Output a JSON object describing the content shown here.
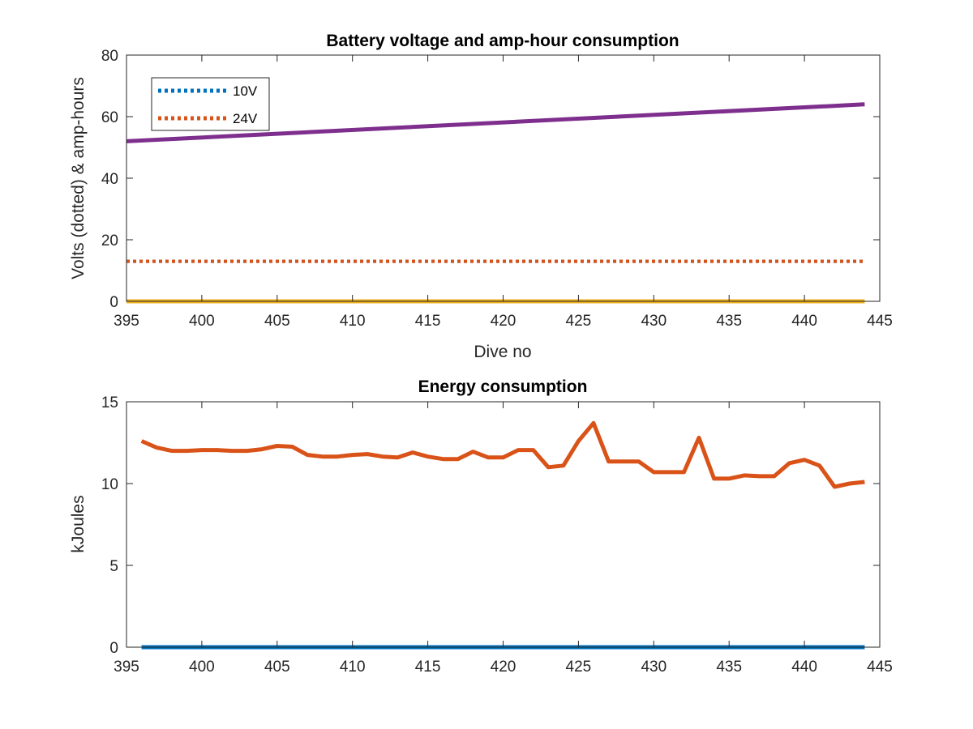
{
  "chart_data": [
    {
      "type": "line",
      "title": "Battery voltage and amp-hour consumption",
      "xlabel": "Dive no",
      "ylabel": "Volts (dotted) & amp-hours",
      "xlim": [
        395,
        445
      ],
      "ylim": [
        0,
        80
      ],
      "xticks": [
        395,
        400,
        405,
        410,
        415,
        420,
        425,
        430,
        435,
        440,
        445
      ],
      "yticks": [
        0,
        20,
        40,
        60,
        80
      ],
      "legend": {
        "placement": "top-left",
        "entries": [
          "10V",
          "24V"
        ]
      },
      "series": [
        {
          "name": "10V",
          "style": "dotted",
          "color": "#0072BD",
          "x": [
            395,
            444
          ],
          "y": [
            13,
            13
          ]
        },
        {
          "name": "24V",
          "style": "dotted",
          "color": "#D95319",
          "x": [
            395,
            444
          ],
          "y": [
            13,
            13
          ]
        },
        {
          "style": "solid",
          "color": "#7E2F8E",
          "x": [
            395,
            444
          ],
          "y": [
            52,
            64
          ]
        },
        {
          "style": "solid",
          "color": "#EDB120",
          "x": [
            395,
            444
          ],
          "y": [
            0,
            0
          ]
        }
      ]
    },
    {
      "type": "line",
      "title": "Energy consumption",
      "xlabel": "",
      "ylabel": "kJoules",
      "xlim": [
        395,
        445
      ],
      "ylim": [
        0,
        15
      ],
      "xticks": [
        395,
        400,
        405,
        410,
        415,
        420,
        425,
        430,
        435,
        440,
        445
      ],
      "yticks": [
        0,
        5,
        10,
        15
      ],
      "series": [
        {
          "style": "solid",
          "color": "#D95319",
          "x": [
            396,
            397,
            398,
            399,
            400,
            401,
            402,
            403,
            404,
            405,
            406,
            407,
            408,
            409,
            410,
            411,
            412,
            413,
            414,
            415,
            416,
            417,
            418,
            419,
            420,
            421,
            422,
            423,
            424,
            425,
            426,
            427,
            428,
            429,
            430,
            431,
            432,
            433,
            434,
            435,
            436,
            437,
            438,
            439,
            440,
            441,
            442,
            443,
            444
          ],
          "y": [
            12.6,
            12.2,
            12.0,
            12.0,
            12.05,
            12.05,
            12.0,
            12.0,
            12.1,
            12.3,
            12.25,
            11.75,
            11.65,
            11.65,
            11.75,
            11.8,
            11.65,
            11.6,
            11.9,
            11.65,
            11.5,
            11.5,
            11.95,
            11.6,
            11.6,
            12.05,
            12.05,
            11.0,
            11.1,
            12.6,
            13.7,
            11.35,
            11.35,
            11.35,
            10.7,
            10.7,
            10.7,
            12.8,
            10.3,
            10.3,
            10.5,
            10.45,
            10.45,
            11.25,
            11.45,
            11.1,
            9.8,
            10.0,
            10.1
          ]
        },
        {
          "style": "solid",
          "color": "#0072BD",
          "x": [
            396,
            444
          ],
          "y": [
            0,
            0
          ]
        }
      ]
    }
  ]
}
